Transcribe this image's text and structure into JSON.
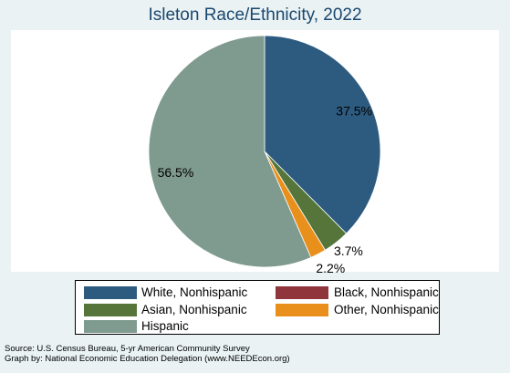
{
  "chart_data": {
    "type": "pie",
    "title": "Isleton Race/Ethnicity, 2022",
    "slices": [
      {
        "name": "White, Nonhispanic",
        "value": 37.5,
        "label": "37.5%",
        "color": "#2d5b80"
      },
      {
        "name": "Black, Nonhispanic",
        "value": 0.0,
        "label": "",
        "color": "#90353b"
      },
      {
        "name": "Asian, Nonhispanic",
        "value": 3.7,
        "label": "3.7%",
        "color": "#55753b"
      },
      {
        "name": "Other, Nonhispanic",
        "value": 2.2,
        "label": "2.2%",
        "color": "#e8901b"
      },
      {
        "name": "Hispanic",
        "value": 56.5,
        "label": "56.5%",
        "color": "#7f9a8f"
      }
    ],
    "legend": {
      "placement": "bottom",
      "entries": [
        "White, Nonhispanic",
        "Black, Nonhispanic",
        "Asian, Nonhispanic",
        "Other, Nonhispanic",
        "Hispanic"
      ]
    }
  },
  "notes": {
    "source": "Source:  U.S. Census Bureau, 5-yr American Community Survey",
    "graph_by": "Graph by: National Economic Education Delegation (www.NEEDEcon.org)"
  }
}
